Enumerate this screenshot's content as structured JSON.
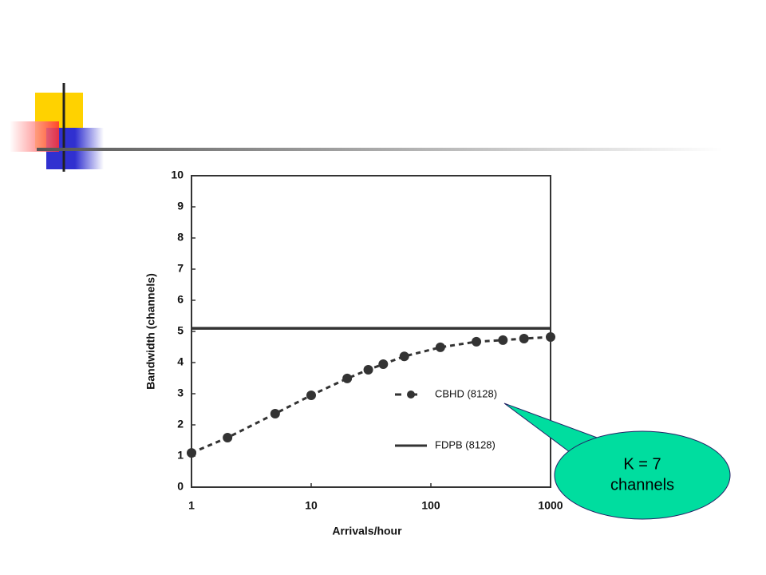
{
  "chart_data": {
    "type": "line",
    "xlabel": "Arrivals/hour",
    "ylabel": "Bandwidth (channels)",
    "xscale": "log",
    "xlim": [
      1,
      1000
    ],
    "xticks": [
      1,
      10,
      100,
      1000
    ],
    "ylim": [
      0,
      10
    ],
    "yticks": [
      0,
      1,
      2,
      3,
      4,
      5,
      6,
      7,
      8,
      9,
      10
    ],
    "series": [
      {
        "name": "CBHD (8128)",
        "color": "#333333",
        "style": "dashed",
        "markers": true,
        "x": [
          1,
          2,
          5,
          10,
          20,
          30,
          40,
          60,
          120,
          240,
          400,
          600,
          1000
        ],
        "values": [
          1.1,
          1.59,
          2.36,
          2.95,
          3.49,
          3.77,
          3.95,
          4.2,
          4.49,
          4.67,
          4.72,
          4.77,
          4.82
        ]
      },
      {
        "name": "FDPB (8128)",
        "color": "#333333",
        "style": "solid",
        "markers": false,
        "x": [
          1,
          1000
        ],
        "values": [
          5.1,
          5.1
        ]
      }
    ],
    "annotation": {
      "lines": [
        "K = 7",
        "channels"
      ],
      "color": "#00dd9f"
    }
  }
}
